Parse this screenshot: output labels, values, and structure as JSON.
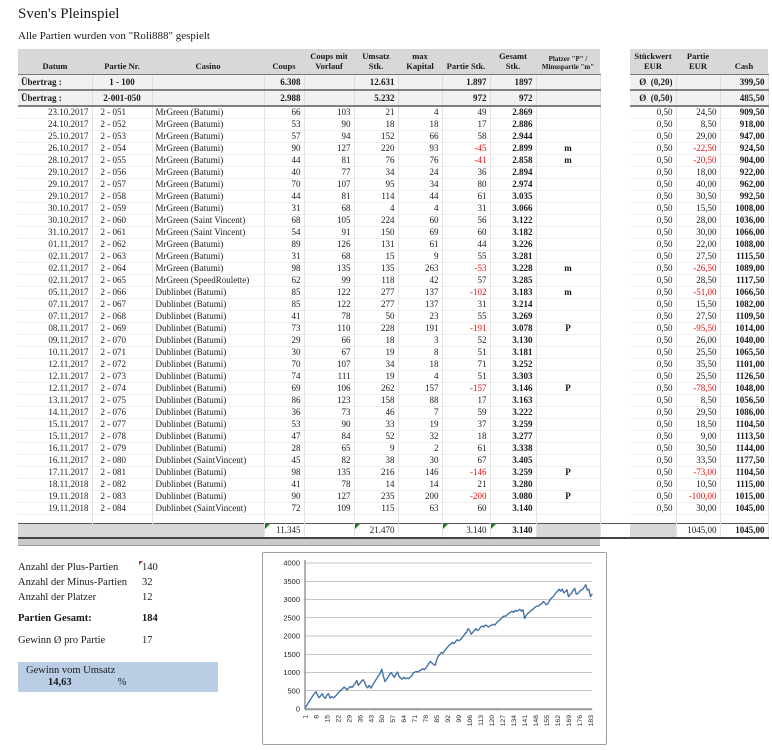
{
  "title": "Sven's Pleinspiel",
  "subtitle": "Alle Partien wurden von \"Roli888\" gespielt",
  "colors": {
    "header_gray": "#d8d8d8",
    "negative_red": "#e01010",
    "highlight_blue": "#b9cde5",
    "chart_line_blue": "#4572a7"
  },
  "table": {
    "headers": [
      "Datum",
      "Partie Nr.",
      "Casino",
      "Coups",
      "Coups mit Vorlauf",
      "Umsatz Stk.",
      "max Kapital",
      "Partie Stk.",
      "Gesamt Stk.",
      "Platzer \"P\" / Minuspartie \"m\"",
      "Stückwert EUR",
      "Partie EUR",
      "Cash"
    ],
    "uebertrag_rows": [
      {
        "label": "Übertrag :",
        "range": "1 - 100",
        "coups": "6.308",
        "umsatz": "12.631",
        "partie_stk": "1.897",
        "gesamt_stk": "1897",
        "stueckwert": "Ø  (0,20)",
        "cash": "399,50"
      },
      {
        "label": "Übertrag :",
        "range": "2-001-050",
        "coups": "2.988",
        "umsatz": "5.232",
        "partie_stk": "972",
        "gesamt_stk": "972",
        "stueckwert": "Ø  (0,50)",
        "cash": "485,50"
      }
    ],
    "rows": [
      [
        "23.10.2017",
        "2 - 051",
        "MrGreen (Batumi)",
        "66",
        "103",
        "21",
        "4",
        "49",
        "2.869",
        "",
        "0,50",
        "24,50",
        "909,50"
      ],
      [
        "24.10.2017",
        "2 - 052",
        "MrGreen (Batumi)",
        "53",
        "90",
        "18",
        "18",
        "17",
        "2.886",
        "",
        "0,50",
        "8,50",
        "918,00"
      ],
      [
        "25.10.2017",
        "2 - 053",
        "MrGreen (Batumi)",
        "57",
        "94",
        "152",
        "66",
        "58",
        "2.944",
        "",
        "0,50",
        "29,00",
        "947,00"
      ],
      [
        "26.10.2017",
        "2 - 054",
        "MrGreen (Batumi)",
        "90",
        "127",
        "220",
        "93",
        "-45",
        "2.899",
        "m",
        "0,50",
        "-22,50",
        "924,50"
      ],
      [
        "28.10.2017",
        "2 - 055",
        "MrGreen (Batumi)",
        "44",
        "81",
        "76",
        "76",
        "-41",
        "2.858",
        "m",
        "0,50",
        "-20,50",
        "904,00"
      ],
      [
        "29.10.2017",
        "2 - 056",
        "MrGreen (Batumi)",
        "40",
        "77",
        "34",
        "24",
        "36",
        "2.894",
        "",
        "0,50",
        "18,00",
        "922,00"
      ],
      [
        "29.10.2017",
        "2 - 057",
        "MrGreen (Batumi)",
        "70",
        "107",
        "95",
        "34",
        "80",
        "2.974",
        "",
        "0,50",
        "40,00",
        "962,00"
      ],
      [
        "29.10.2017",
        "2 - 058",
        "MrGreen (Batumi)",
        "44",
        "81",
        "114",
        "44",
        "61",
        "3.035",
        "",
        "0,50",
        "30,50",
        "992,50"
      ],
      [
        "30.10.2017",
        "2 - 059",
        "MrGreen (Batumi)",
        "31",
        "68",
        "4",
        "4",
        "31",
        "3.066",
        "",
        "0,50",
        "15,50",
        "1008,00"
      ],
      [
        "30.10.2017",
        "2 - 060",
        "MrGreen (Saint Vincent)",
        "68",
        "105",
        "224",
        "60",
        "56",
        "3.122",
        "",
        "0,50",
        "28,00",
        "1036,00"
      ],
      [
        "31.10.2017",
        "2 - 061",
        "MrGreen (Saint Vincent)",
        "54",
        "91",
        "150",
        "69",
        "60",
        "3.182",
        "",
        "0,50",
        "30,00",
        "1066,00"
      ],
      [
        "01.11.2017",
        "2 - 062",
        "MrGreen (Batumi)",
        "89",
        "126",
        "131",
        "61",
        "44",
        "3.226",
        "",
        "0,50",
        "22,00",
        "1088,00"
      ],
      [
        "02.11.2017",
        "2 - 063",
        "MrGreen (Batumi)",
        "31",
        "68",
        "15",
        "9",
        "55",
        "3.281",
        "",
        "0,50",
        "27,50",
        "1115,50"
      ],
      [
        "02.11.2017",
        "2 - 064",
        "MrGreen (Batumi)",
        "98",
        "135",
        "135",
        "263",
        "-53",
        "3.228",
        "m",
        "0,50",
        "-26,50",
        "1089,00"
      ],
      [
        "02.11.2017",
        "2 - 065",
        "MrGreen (SpeedRoulette)",
        "62",
        "99",
        "118",
        "42",
        "57",
        "3.285",
        "",
        "0,50",
        "28,50",
        "1117,50"
      ],
      [
        "05.11.2017",
        "2 - 066",
        "Dublinbet (Batumi)",
        "85",
        "122",
        "277",
        "137",
        "-102",
        "3.183",
        "m",
        "0,50",
        "-51,00",
        "1066,50"
      ],
      [
        "07.11.2017",
        "2 - 067",
        "Dublinbet (Batumi)",
        "85",
        "122",
        "277",
        "137",
        "31",
        "3.214",
        "",
        "0,50",
        "15,50",
        "1082,00"
      ],
      [
        "07.11.2017",
        "2 - 068",
        "Dublinbet (Batumi)",
        "41",
        "78",
        "50",
        "23",
        "55",
        "3.269",
        "",
        "0,50",
        "27,50",
        "1109,50"
      ],
      [
        "08.11.2017",
        "2 - 069",
        "Dublinbet (Batumi)",
        "73",
        "110",
        "228",
        "191",
        "-191",
        "3.078",
        "P",
        "0,50",
        "-95,50",
        "1014,00"
      ],
      [
        "09.11.2017",
        "2 - 070",
        "Dublinbet (Batumi)",
        "29",
        "66",
        "18",
        "3",
        "52",
        "3.130",
        "",
        "0,50",
        "26,00",
        "1040,00"
      ],
      [
        "10.11.2017",
        "2 - 071",
        "Dublinbet (Batumi)",
        "30",
        "67",
        "19",
        "8",
        "51",
        "3.181",
        "",
        "0,50",
        "25,50",
        "1065,50"
      ],
      [
        "12.11.2017",
        "2 - 072",
        "Dublinbet (Batumi)",
        "70",
        "107",
        "34",
        "18",
        "71",
        "3.252",
        "",
        "0,50",
        "35,50",
        "1101,00"
      ],
      [
        "12.11.2017",
        "2 - 073",
        "Dublinbet (Batumi)",
        "74",
        "111",
        "19",
        "4",
        "51",
        "3.303",
        "",
        "0,50",
        "25,50",
        "1126,50"
      ],
      [
        "12.11.2017",
        "2 - 074",
        "Dublinbet (Batumi)",
        "69",
        "106",
        "262",
        "157",
        "-157",
        "3.146",
        "P",
        "0,50",
        "-78,50",
        "1048,00"
      ],
      [
        "13.11.2017",
        "2 - 075",
        "Dublinbet (Batumi)",
        "86",
        "123",
        "158",
        "88",
        "17",
        "3.163",
        "",
        "0,50",
        "8,50",
        "1056,50"
      ],
      [
        "14.11.2017",
        "2 - 076",
        "Dublinbet (Batumi)",
        "36",
        "73",
        "46",
        "7",
        "59",
        "3.222",
        "",
        "0,50",
        "29,50",
        "1086,00"
      ],
      [
        "15.11.2017",
        "2 - 077",
        "Dublinbet (Batumi)",
        "53",
        "90",
        "33",
        "19",
        "37",
        "3.259",
        "",
        "0,50",
        "18,50",
        "1104,50"
      ],
      [
        "15.11.2017",
        "2 - 078",
        "Dublinbet (Batumi)",
        "47",
        "84",
        "52",
        "32",
        "18",
        "3.277",
        "",
        "0,50",
        "9,00",
        "1113,50"
      ],
      [
        "16.11.2017",
        "2 - 079",
        "Dublinbet (Batumi)",
        "28",
        "65",
        "9",
        "2",
        "61",
        "3.338",
        "",
        "0,50",
        "30,50",
        "1144,00"
      ],
      [
        "16.11.2017",
        "2 - 080",
        "Dublinbet (SaintVincent)",
        "45",
        "82",
        "38",
        "30",
        "67",
        "3.405",
        "",
        "0,50",
        "33,50",
        "1177,50"
      ],
      [
        "17.11.2017",
        "2 - 081",
        "Dublinbet (Batumi)",
        "98",
        "135",
        "216",
        "146",
        "-146",
        "3.259",
        "P",
        "0,50",
        "-73,00",
        "1104,50"
      ],
      [
        "18.11.2018",
        "2 - 082",
        "Dublinbet (Batumi)",
        "41",
        "78",
        "14",
        "14",
        "21",
        "3.280",
        "",
        "0,50",
        "10,50",
        "1115,00"
      ],
      [
        "19.11.2018",
        "2 - 083",
        "Dublinbet (Batumi)",
        "90",
        "127",
        "235",
        "200",
        "-200",
        "3.080",
        "P",
        "0,50",
        "-100,00",
        "1015,00"
      ],
      [
        "19.11.2018",
        "2 - 084",
        "Dublinbet (SaintVincent)",
        "72",
        "109",
        "115",
        "63",
        "60",
        "3.140",
        "",
        "0,50",
        "30,00",
        "1045,00"
      ]
    ],
    "totals": {
      "coups": "11.345",
      "umsatz": "21.470",
      "partie_stk": "3.140",
      "gesamt_stk": "3.140",
      "partie_eur": "1045,00",
      "cash": "1045,00"
    }
  },
  "summary": {
    "items": [
      {
        "label": "Anzahl der Plus-Partien",
        "value": "140",
        "bold": false,
        "marker": true,
        "gap": false
      },
      {
        "label": "Anzahl der Minus-Partien",
        "value": "32",
        "bold": false,
        "marker": false,
        "gap": false
      },
      {
        "label": "Anzahl der Platzer",
        "value": "12",
        "bold": false,
        "marker": false,
        "gap": false
      },
      {
        "label": "Partien Gesamt:",
        "value": "184",
        "bold": true,
        "marker": false,
        "gap": true
      },
      {
        "label": "Gewinn Ø  pro Partie",
        "value": "17",
        "bold": false,
        "marker": false,
        "gap": true
      }
    ],
    "gewinn_box": {
      "label": "Gewinn vom Umsatz",
      "value": "14,63",
      "unit": "%"
    }
  },
  "chart_data": {
    "type": "line",
    "title": "",
    "xlabel": "",
    "ylabel": "",
    "ylim": [
      0,
      4000
    ],
    "y_ticks": [
      0,
      500,
      1000,
      1500,
      2000,
      2500,
      3000,
      3500,
      4000
    ],
    "x_tick_labels": [
      1,
      8,
      15,
      22,
      29,
      36,
      43,
      50,
      57,
      64,
      71,
      78,
      85,
      92,
      99,
      106,
      113,
      120,
      127,
      134,
      141,
      148,
      155,
      162,
      169,
      176,
      183
    ],
    "grid": true,
    "legend": "none",
    "line_color": "#4572a7",
    "series": [
      {
        "name": "",
        "values": [
          30,
          90,
          160,
          230,
          300,
          360,
          420,
          470,
          380,
          310,
          360,
          420,
          330,
          290,
          390,
          420,
          300,
          340,
          310,
          330,
          380,
          430,
          480,
          520,
          560,
          600,
          560,
          530,
          580,
          620,
          590,
          650,
          700,
          780,
          650,
          700,
          760,
          800,
          740,
          620,
          580,
          650,
          570,
          640,
          720,
          790,
          850,
          920,
          990,
          1090,
          900,
          750,
          820,
          880,
          950,
          1000,
          920,
          870,
          950,
          1010,
          900,
          840,
          820,
          870,
          830,
          850,
          830,
          870,
          900,
          990,
          1010,
          1030,
          1010,
          1050,
          1070,
          1100,
          1080,
          1120,
          1180,
          1250,
          1300,
          1260,
          1220,
          1200,
          1350,
          1450,
          1500,
          1550,
          1530,
          1600,
          1650,
          1700,
          1750,
          1780,
          1830,
          1790,
          1850,
          1900,
          1870,
          1897,
          1950,
          2000,
          2060,
          2100,
          2200,
          2150,
          2050,
          2100,
          2150,
          2200,
          2150,
          2180,
          2250,
          2270,
          2250,
          2300,
          2280,
          2250,
          2280,
          2300,
          2320,
          2300,
          2350,
          2400,
          2430,
          2470,
          2520,
          2550,
          2540,
          2580,
          2620,
          2650,
          2680,
          2650,
          2700,
          2680,
          2700,
          2730,
          2680,
          2720,
          2480,
          2560,
          2620,
          2650,
          2700,
          2720,
          2760,
          2800,
          2820,
          2820,
          2869,
          2886,
          2944,
          2899,
          2858,
          2894,
          2974,
          3035,
          3066,
          3122,
          3182,
          3226,
          3281,
          3228,
          3285,
          3183,
          3214,
          3269,
          3078,
          3130,
          3181,
          3252,
          3303,
          3146,
          3163,
          3222,
          3259,
          3277,
          3338,
          3405,
          3259,
          3280,
          3080,
          3140
        ]
      }
    ]
  }
}
